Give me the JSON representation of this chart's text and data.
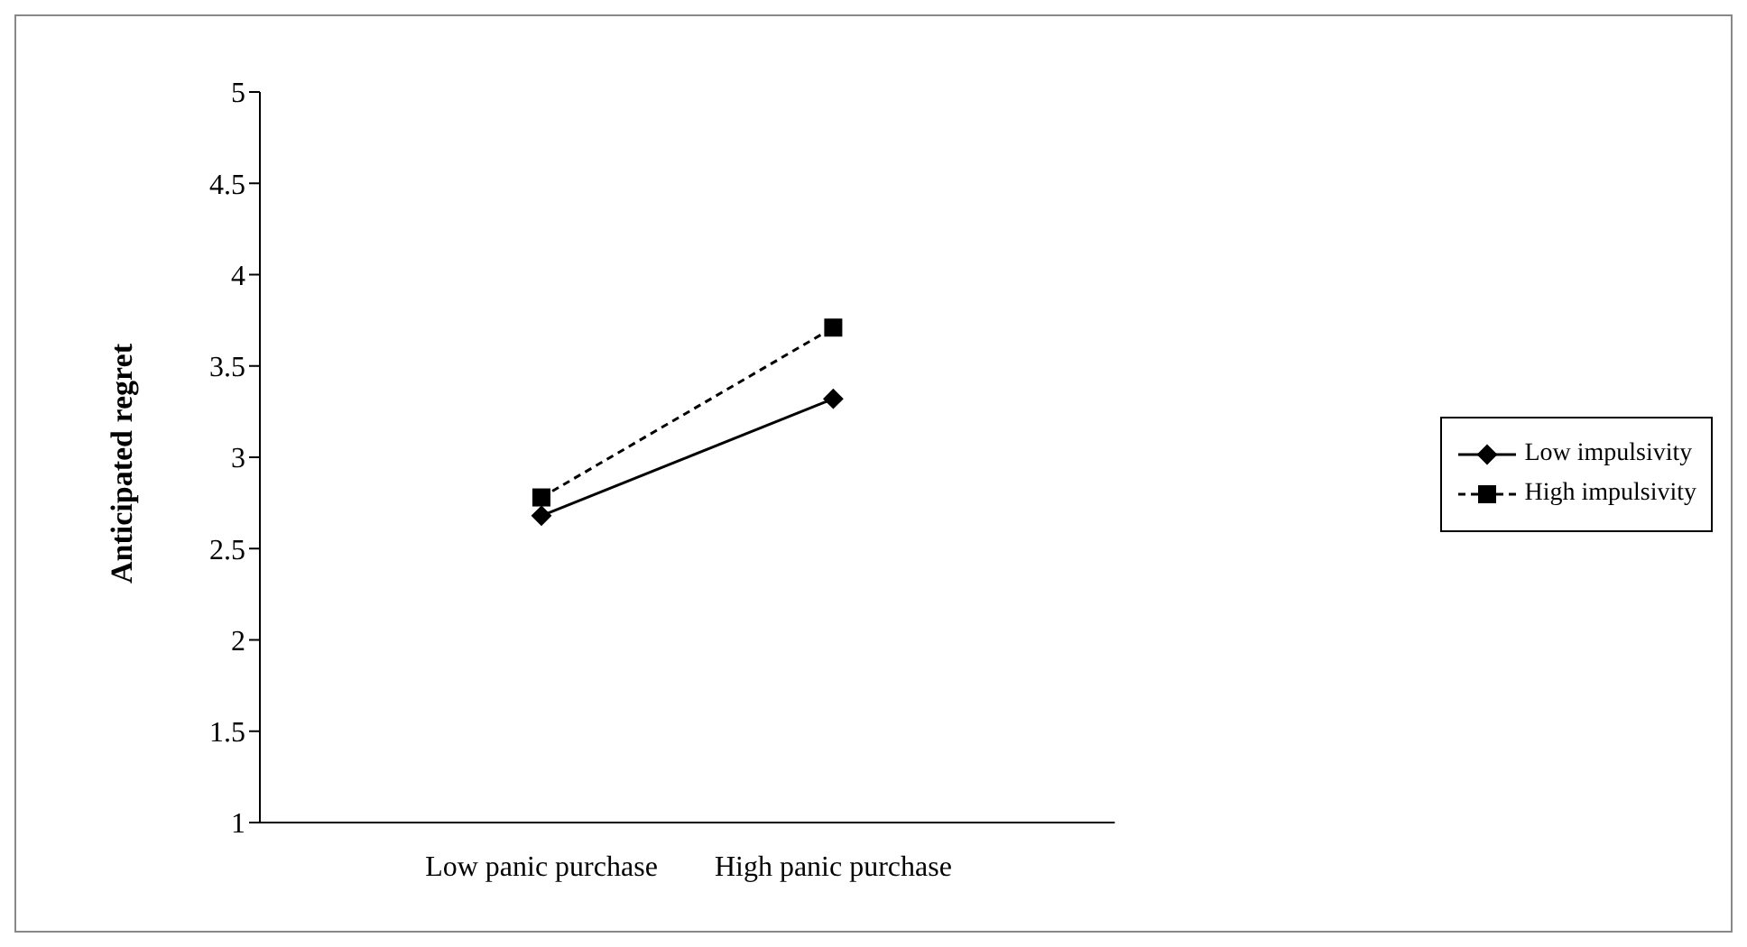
{
  "chart_data": {
    "type": "line",
    "ylabel": "Anticipated regret",
    "categories": [
      "Low panic purchase",
      "High panic purchase"
    ],
    "series": [
      {
        "name": "Low impulsivity",
        "color": "#000000",
        "values": [
          2.68,
          3.32
        ],
        "marker": "diamond",
        "line_style": "solid"
      },
      {
        "name": "High impulsivity",
        "color": "#000000",
        "values": [
          2.78,
          3.71
        ],
        "marker": "square",
        "line_style": "dashed"
      }
    ],
    "ylim": [
      1,
      5
    ],
    "yticks": [
      1,
      1.5,
      2,
      2.5,
      3,
      3.5,
      4,
      4.5,
      5
    ],
    "grid": false,
    "legend": "right"
  }
}
